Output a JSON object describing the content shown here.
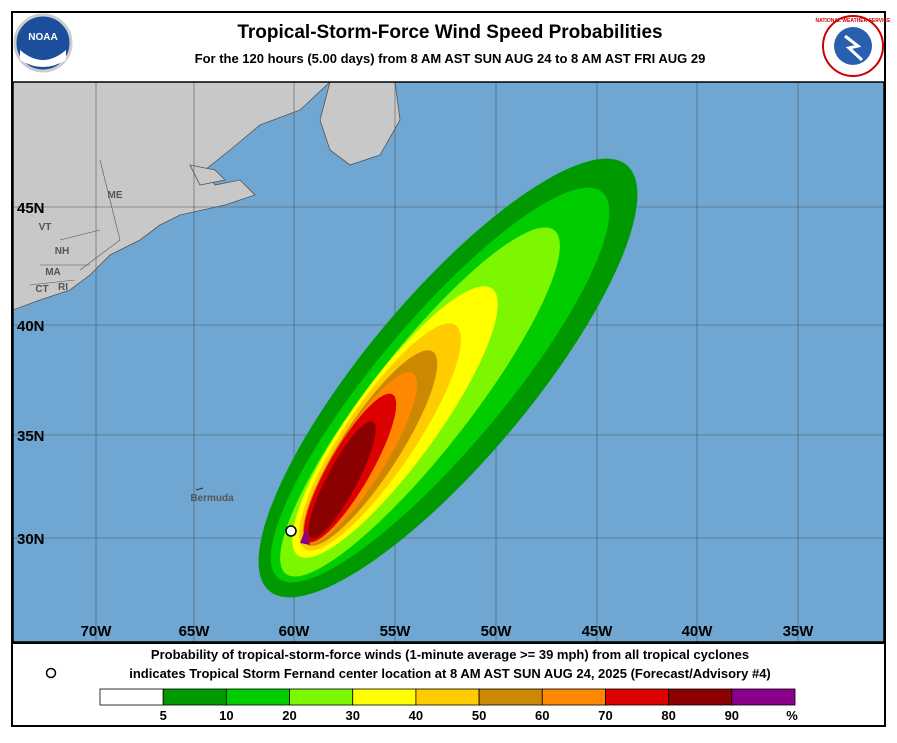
{
  "header": {
    "title": "Tropical-Storm-Force Wind Speed Probabilities",
    "subtitle": "For the 120 hours (5.00 days) from 8 AM AST SUN AUG 24 to 8 AM AST FRI AUG 29",
    "left_logo": "NOAA",
    "right_logo": "NATIONAL WEATHER SERVICE"
  },
  "map": {
    "lon_labels": [
      "70W",
      "65W",
      "60W",
      "55W",
      "50W",
      "45W",
      "40W",
      "35W"
    ],
    "lat_labels": [
      "45N",
      "40N",
      "35N",
      "30N"
    ],
    "place_labels": [
      "ME",
      "VT",
      "NH",
      "MA",
      "CT",
      "RI",
      "Bermuda"
    ]
  },
  "footer": {
    "line1": "Probability of tropical-storm-force winds (1-minute average >= 39 mph) from all tropical cyclones",
    "line2": "indicates Tropical Storm Fernand center location at 8 AM AST SUN AUG 24, 2025 (Forecast/Advisory #4)"
  },
  "legend": {
    "bins": [
      {
        "color": "#ffffff",
        "label": "5"
      },
      {
        "color": "#009a00",
        "label": "10"
      },
      {
        "color": "#00cc00",
        "label": "20"
      },
      {
        "color": "#7cf700",
        "label": "30"
      },
      {
        "color": "#ffff00",
        "label": "40"
      },
      {
        "color": "#ffcc00",
        "label": "50"
      },
      {
        "color": "#cc8800",
        "label": "60"
      },
      {
        "color": "#ff8800",
        "label": "70"
      },
      {
        "color": "#dd0000",
        "label": "80"
      },
      {
        "color": "#8b0000",
        "label": "90"
      },
      {
        "color": "#8b008b",
        "label": "%"
      }
    ]
  }
}
